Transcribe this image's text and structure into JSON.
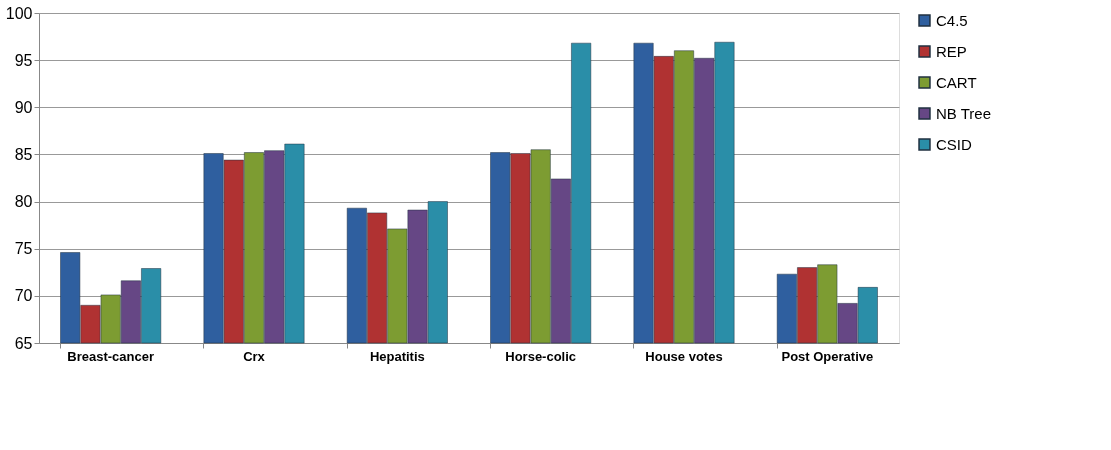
{
  "chart_data": {
    "type": "bar",
    "categories": [
      "Breast-cancer",
      "Crx",
      "Hepatitis",
      "Horse-colic",
      "House votes",
      "Post Operative"
    ],
    "series": [
      {
        "name": "C4.5",
        "color": "#2f5f9f",
        "values": [
          74.6,
          85.1,
          79.3,
          85.2,
          96.8,
          72.3
        ]
      },
      {
        "name": "REP",
        "color": "#b03232",
        "values": [
          69.0,
          84.4,
          78.8,
          85.1,
          95.4,
          73.0
        ]
      },
      {
        "name": "CART",
        "color": "#7d9c32",
        "values": [
          70.1,
          85.2,
          77.1,
          85.5,
          96.0,
          73.3
        ]
      },
      {
        "name": "NB Tree",
        "color": "#664785",
        "values": [
          71.6,
          85.4,
          79.1,
          82.4,
          95.2,
          69.2
        ]
      },
      {
        "name": "CSID",
        "color": "#2a8ea8",
        "values": [
          72.9,
          86.1,
          80.0,
          96.8,
          96.9,
          70.9
        ]
      }
    ],
    "ylim": [
      65,
      100
    ],
    "yticks": [
      65,
      70,
      75,
      80,
      85,
      90,
      95,
      100
    ],
    "grid": "y",
    "legend": "right"
  }
}
